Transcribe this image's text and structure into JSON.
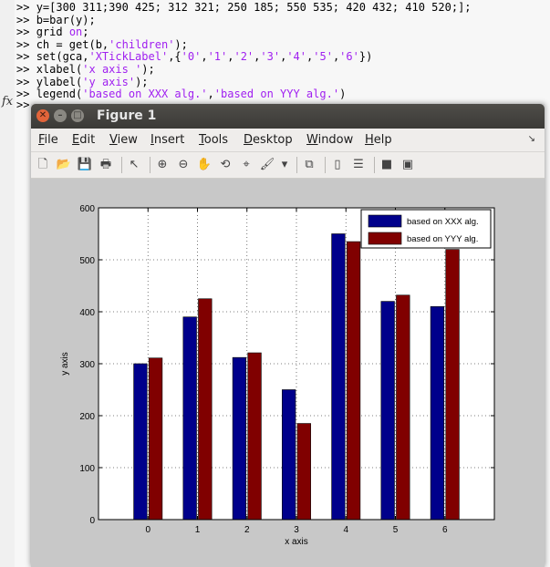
{
  "command_window": {
    "lines": [
      {
        "prompt": ">>",
        "parts": [
          {
            "t": "y=[300 311;390 425; 312 321; 250 185; 550 535; 420 432; 410 520;];",
            "c": ""
          }
        ]
      },
      {
        "prompt": ">>",
        "parts": [
          {
            "t": "b=bar(y);",
            "c": ""
          }
        ]
      },
      {
        "prompt": ">>",
        "parts": [
          {
            "t": "grid ",
            "c": ""
          },
          {
            "t": "on",
            "c": "kw"
          },
          {
            "t": ";",
            "c": ""
          }
        ]
      },
      {
        "prompt": ">>",
        "parts": [
          {
            "t": "ch = get(b,",
            "c": ""
          },
          {
            "t": "'children'",
            "c": "str"
          },
          {
            "t": ");",
            "c": ""
          }
        ]
      },
      {
        "prompt": ">>",
        "parts": [
          {
            "t": "set(gca,",
            "c": ""
          },
          {
            "t": "'XTickLabel'",
            "c": "str"
          },
          {
            "t": ",{",
            "c": ""
          },
          {
            "t": "'0'",
            "c": "str"
          },
          {
            "t": ",",
            "c": ""
          },
          {
            "t": "'1'",
            "c": "str"
          },
          {
            "t": ",",
            "c": ""
          },
          {
            "t": "'2'",
            "c": "str"
          },
          {
            "t": ",",
            "c": ""
          },
          {
            "t": "'3'",
            "c": "str"
          },
          {
            "t": ",",
            "c": ""
          },
          {
            "t": "'4'",
            "c": "str"
          },
          {
            "t": ",",
            "c": ""
          },
          {
            "t": "'5'",
            "c": "str"
          },
          {
            "t": ",",
            "c": ""
          },
          {
            "t": "'6'",
            "c": "str"
          },
          {
            "t": "})",
            "c": ""
          }
        ]
      },
      {
        "prompt": ">>",
        "parts": [
          {
            "t": "xlabel(",
            "c": ""
          },
          {
            "t": "'x axis '",
            "c": "str"
          },
          {
            "t": ");",
            "c": ""
          }
        ]
      },
      {
        "prompt": ">>",
        "parts": [
          {
            "t": "ylabel(",
            "c": ""
          },
          {
            "t": "'y axis'",
            "c": "str"
          },
          {
            "t": ");",
            "c": ""
          }
        ]
      },
      {
        "prompt": ">>",
        "parts": [
          {
            "t": "legend(",
            "c": ""
          },
          {
            "t": "'based on XXX alg.'",
            "c": "str"
          },
          {
            "t": ",",
            "c": ""
          },
          {
            "t": "'based on YYY alg.'",
            "c": "str"
          },
          {
            "t": ")",
            "c": ""
          }
        ]
      }
    ],
    "fx_label": "fx",
    "last_prompt": ">>"
  },
  "figure_window": {
    "title": "Figure 1",
    "close_glyph": "✕",
    "min_glyph": "–",
    "max_glyph": "□",
    "menus": [
      {
        "label": "File",
        "ul": "F",
        "rest": "ile"
      },
      {
        "label": "Edit",
        "ul": "E",
        "rest": "dit"
      },
      {
        "label": "View",
        "ul": "V",
        "rest": "iew"
      },
      {
        "label": "Insert",
        "ul": "I",
        "rest": "nsert"
      },
      {
        "label": "Tools",
        "ul": "T",
        "rest": "ools"
      },
      {
        "label": "Desktop",
        "ul": "D",
        "rest": "esktop"
      },
      {
        "label": "Window",
        "ul": "W",
        "rest": "indow"
      },
      {
        "label": "Help",
        "ul": "H",
        "rest": "elp"
      }
    ],
    "menu_overflow_glyph": "↘",
    "toolbar": [
      {
        "name": "new-figure-icon",
        "glyph": "🗋"
      },
      {
        "name": "open-file-icon",
        "glyph": "📂"
      },
      {
        "name": "save-icon",
        "glyph": "💾"
      },
      {
        "name": "print-icon",
        "glyph": "🖶"
      },
      {
        "name": "separator"
      },
      {
        "name": "edit-plot-arrow-icon",
        "glyph": "↖"
      },
      {
        "name": "separator"
      },
      {
        "name": "zoom-in-icon",
        "glyph": "⊕"
      },
      {
        "name": "zoom-out-icon",
        "glyph": "⊖"
      },
      {
        "name": "pan-hand-icon",
        "glyph": "✋"
      },
      {
        "name": "rotate-3d-icon",
        "glyph": "⟲"
      },
      {
        "name": "data-cursor-icon",
        "glyph": "⌖"
      },
      {
        "name": "brush-icon",
        "glyph": "🖌"
      },
      {
        "name": "dropdown-arrow-icon",
        "glyph": "▾"
      },
      {
        "name": "separator"
      },
      {
        "name": "link-plot-icon",
        "glyph": "⧉"
      },
      {
        "name": "separator"
      },
      {
        "name": "colorbar-icon",
        "glyph": "▯"
      },
      {
        "name": "legend-icon",
        "glyph": "☰"
      },
      {
        "name": "separator"
      },
      {
        "name": "hide-plot-tools-icon",
        "glyph": "■"
      },
      {
        "name": "show-plot-tools-icon",
        "glyph": "▣"
      }
    ]
  },
  "colors": {
    "series1": "#00008b",
    "series2": "#800000",
    "figure_bg": "#c8c8c8",
    "axes_bg": "#ffffff"
  },
  "chart_data": {
    "type": "bar",
    "categories": [
      "0",
      "1",
      "2",
      "3",
      "4",
      "5",
      "6"
    ],
    "series": [
      {
        "name": "based on XXX alg.",
        "values": [
          300,
          390,
          312,
          250,
          550,
          420,
          410
        ]
      },
      {
        "name": "based on YYY alg.",
        "values": [
          311,
          425,
          321,
          185,
          535,
          432,
          520
        ]
      }
    ],
    "xlabel": "x axis",
    "ylabel": "y axis",
    "ylim": [
      0,
      600
    ],
    "yticks": [
      0,
      100,
      200,
      300,
      400,
      500,
      600
    ],
    "grid": true,
    "legend_position": "top-right"
  }
}
